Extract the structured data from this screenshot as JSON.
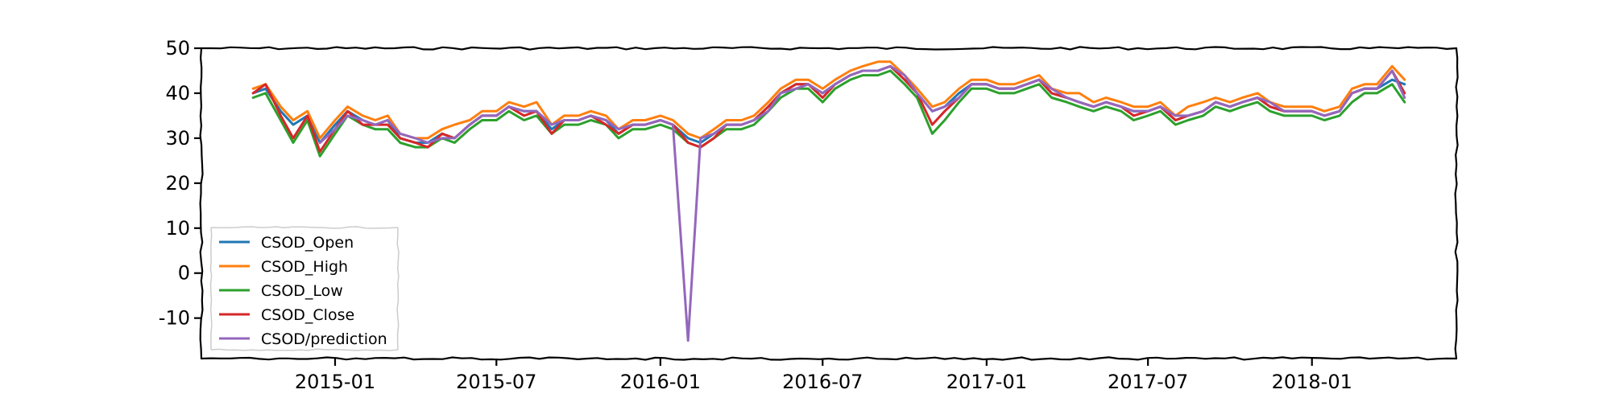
{
  "chart_data": {
    "type": "line",
    "title": "",
    "xlabel": "",
    "ylabel": "",
    "style": "xkcd",
    "xlim": [
      "2014-08-04",
      "2018-06-12"
    ],
    "ylim": [
      -19,
      50
    ],
    "grid": false,
    "legend_position": "lower-left",
    "x_ticks": [
      "2015-01",
      "2015-07",
      "2016-01",
      "2016-07",
      "2017-01",
      "2017-07",
      "2018-01"
    ],
    "y_ticks": [
      50,
      40,
      30,
      20,
      10,
      0,
      -10
    ],
    "x": [
      "2014-10-01",
      "2014-10-15",
      "2014-11-01",
      "2014-11-15",
      "2014-12-01",
      "2014-12-15",
      "2015-01-01",
      "2015-01-15",
      "2015-02-01",
      "2015-02-15",
      "2015-03-01",
      "2015-03-15",
      "2015-04-01",
      "2015-04-15",
      "2015-05-01",
      "2015-05-15",
      "2015-06-01",
      "2015-06-15",
      "2015-07-01",
      "2015-07-15",
      "2015-08-01",
      "2015-08-15",
      "2015-09-01",
      "2015-09-15",
      "2015-10-01",
      "2015-10-15",
      "2015-11-01",
      "2015-11-15",
      "2015-12-01",
      "2015-12-15",
      "2016-01-01",
      "2016-01-15",
      "2016-02-01",
      "2016-02-15",
      "2016-03-01",
      "2016-03-15",
      "2016-04-01",
      "2016-04-15",
      "2016-05-01",
      "2016-05-15",
      "2016-06-01",
      "2016-06-15",
      "2016-07-01",
      "2016-07-15",
      "2016-08-01",
      "2016-08-15",
      "2016-09-01",
      "2016-09-15",
      "2016-10-01",
      "2016-10-15",
      "2016-11-01",
      "2016-11-15",
      "2016-12-01",
      "2016-12-15",
      "2017-01-01",
      "2017-01-15",
      "2017-02-01",
      "2017-02-15",
      "2017-03-01",
      "2017-03-15",
      "2017-04-01",
      "2017-04-15",
      "2017-05-01",
      "2017-05-15",
      "2017-06-01",
      "2017-06-15",
      "2017-07-01",
      "2017-07-15",
      "2017-08-01",
      "2017-08-15",
      "2017-09-01",
      "2017-09-15",
      "2017-10-01",
      "2017-10-15",
      "2017-11-01",
      "2017-11-15",
      "2017-12-01",
      "2017-12-15",
      "2018-01-01",
      "2018-01-15",
      "2018-02-01",
      "2018-02-15",
      "2018-03-01",
      "2018-03-15",
      "2018-04-01",
      "2018-04-15"
    ],
    "series": [
      {
        "name": "CSOD_Open",
        "color": "#1f77b4",
        "values": [
          40,
          41,
          36,
          33,
          35,
          29,
          33,
          36,
          34,
          33,
          34,
          30,
          29,
          29,
          31,
          30,
          33,
          35,
          35,
          37,
          36,
          36,
          32,
          34,
          34,
          35,
          34,
          31,
          33,
          33,
          34,
          33,
          30,
          29,
          31,
          33,
          33,
          34,
          37,
          40,
          42,
          42,
          40,
          42,
          44,
          45,
          45,
          46,
          43,
          40,
          36,
          37,
          40,
          42,
          42,
          41,
          41,
          42,
          43,
          40,
          39,
          38,
          37,
          38,
          37,
          36,
          36,
          37,
          34,
          35,
          36,
          38,
          37,
          38,
          39,
          37,
          36,
          36,
          36,
          35,
          36,
          40,
          41,
          41,
          43,
          42
        ]
      },
      {
        "name": "CSOD_High",
        "color": "#ff7f0e",
        "values": [
          41,
          42,
          37,
          34,
          36,
          30,
          34,
          37,
          35,
          34,
          35,
          31,
          30,
          30,
          32,
          33,
          34,
          36,
          36,
          38,
          37,
          38,
          33,
          35,
          35,
          36,
          35,
          32,
          34,
          34,
          35,
          34,
          31,
          30,
          32,
          34,
          34,
          35,
          38,
          41,
          43,
          43,
          41,
          43,
          45,
          46,
          47,
          47,
          44,
          41,
          37,
          38,
          41,
          43,
          43,
          42,
          42,
          43,
          44,
          41,
          40,
          40,
          38,
          39,
          38,
          37,
          37,
          38,
          35,
          37,
          38,
          39,
          38,
          39,
          40,
          38,
          37,
          37,
          37,
          36,
          37,
          41,
          42,
          42,
          46,
          43
        ]
      },
      {
        "name": "CSOD_Low",
        "color": "#2ca02c",
        "values": [
          39,
          40,
          34,
          29,
          34,
          26,
          31,
          35,
          33,
          32,
          32,
          29,
          28,
          28,
          30,
          29,
          32,
          34,
          34,
          36,
          34,
          35,
          31,
          33,
          33,
          34,
          33,
          30,
          32,
          32,
          33,
          32,
          29,
          28,
          30,
          32,
          32,
          33,
          36,
          39,
          41,
          41,
          38,
          41,
          43,
          44,
          44,
          45,
          42,
          39,
          31,
          34,
          38,
          41,
          41,
          40,
          40,
          41,
          42,
          39,
          38,
          37,
          36,
          37,
          36,
          34,
          35,
          36,
          33,
          34,
          35,
          37,
          36,
          37,
          38,
          36,
          35,
          35,
          35,
          34,
          35,
          38,
          40,
          40,
          42,
          38
        ]
      },
      {
        "name": "CSOD_Close",
        "color": "#d62728",
        "values": [
          40,
          42,
          35,
          30,
          35,
          27,
          32,
          36,
          33,
          33,
          33,
          30,
          29,
          28,
          31,
          30,
          33,
          35,
          35,
          37,
          35,
          36,
          31,
          34,
          34,
          35,
          33,
          31,
          33,
          33,
          34,
          33,
          29,
          28,
          30,
          33,
          33,
          34,
          37,
          40,
          42,
          42,
          39,
          42,
          44,
          45,
          45,
          46,
          43,
          40,
          33,
          36,
          39,
          42,
          42,
          41,
          41,
          42,
          43,
          40,
          39,
          38,
          37,
          38,
          37,
          35,
          36,
          37,
          34,
          35,
          36,
          38,
          37,
          38,
          39,
          37,
          36,
          36,
          36,
          35,
          36,
          40,
          41,
          41,
          45,
          40
        ]
      },
      {
        "name": "CSOD/prediction",
        "color": "#9467bd",
        "values": [
          null,
          null,
          null,
          null,
          null,
          29,
          32,
          35,
          34,
          33,
          34,
          31,
          30,
          29,
          30,
          30,
          33,
          35,
          35,
          37,
          36,
          36,
          33,
          34,
          34,
          35,
          34,
          32,
          33,
          33,
          34,
          33,
          -15,
          30,
          31,
          33,
          33,
          34,
          36,
          40,
          41,
          42,
          40,
          42,
          44,
          45,
          45,
          46,
          44,
          40,
          36,
          37,
          39,
          42,
          42,
          41,
          41,
          42,
          43,
          41,
          39,
          38,
          37,
          38,
          37,
          36,
          36,
          37,
          35,
          35,
          36,
          38,
          37,
          38,
          39,
          38,
          36,
          36,
          36,
          35,
          36,
          40,
          41,
          41,
          45,
          39
        ]
      }
    ]
  }
}
